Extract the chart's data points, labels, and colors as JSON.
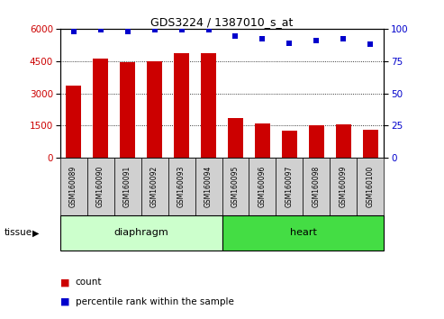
{
  "title": "GDS3224 / 1387010_s_at",
  "samples": [
    "GSM160089",
    "GSM160090",
    "GSM160091",
    "GSM160092",
    "GSM160093",
    "GSM160094",
    "GSM160095",
    "GSM160096",
    "GSM160097",
    "GSM160098",
    "GSM160099",
    "GSM160100"
  ],
  "counts": [
    3350,
    4600,
    4450,
    4480,
    4850,
    4850,
    1850,
    1580,
    1270,
    1520,
    1570,
    1320
  ],
  "percentiles": [
    98,
    99,
    98,
    99,
    99,
    99,
    94,
    92,
    89,
    91,
    92,
    88
  ],
  "bar_color": "#cc0000",
  "dot_color": "#0000cc",
  "ylim_left": [
    0,
    6000
  ],
  "ylim_right": [
    0,
    100
  ],
  "yticks_left": [
    0,
    1500,
    3000,
    4500,
    6000
  ],
  "yticks_right": [
    0,
    25,
    50,
    75,
    100
  ],
  "tissue_groups": [
    {
      "label": "diaphragm",
      "start": 0,
      "end": 6,
      "color": "#ccffcc"
    },
    {
      "label": "heart",
      "start": 6,
      "end": 12,
      "color": "#44dd44"
    }
  ],
  "legend_count_label": "count",
  "legend_pct_label": "percentile rank within the sample",
  "tissue_label": "tissue",
  "plot_bg_color": "#ffffff",
  "tick_bg_color": "#d0d0d0"
}
